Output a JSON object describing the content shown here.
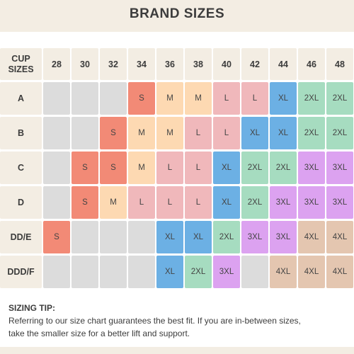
{
  "title": "BRAND SIZES",
  "chart_data": {
    "type": "table",
    "corner_lines": [
      "CUP",
      "SIZES"
    ],
    "bands": [
      "28",
      "30",
      "32",
      "34",
      "36",
      "38",
      "40",
      "42",
      "44",
      "46",
      "48"
    ],
    "rows": [
      {
        "cup": "A",
        "sizes": [
          "",
          "",
          "",
          "S",
          "M",
          "M",
          "L",
          "L",
          "XL",
          "2XL",
          "2XL"
        ]
      },
      {
        "cup": "B",
        "sizes": [
          "",
          "",
          "S",
          "M",
          "M",
          "L",
          "L",
          "XL",
          "XL",
          "2XL",
          "2XL"
        ]
      },
      {
        "cup": "C",
        "sizes": [
          "",
          "S",
          "S",
          "M",
          "L",
          "L",
          "XL",
          "2XL",
          "2XL",
          "3XL",
          "3XL"
        ]
      },
      {
        "cup": "D",
        "sizes": [
          "",
          "S",
          "M",
          "L",
          "L",
          "L",
          "XL",
          "2XL",
          "3XL",
          "3XL",
          "3XL"
        ]
      },
      {
        "cup": "DD/E",
        "sizes": [
          "S",
          "",
          "",
          "",
          "XL",
          "XL",
          "2XL",
          "3XL",
          "3XL",
          "4XL",
          "4XL"
        ]
      },
      {
        "cup": "DDD/F",
        "sizes": [
          "",
          "",
          "",
          "",
          "XL",
          "2XL",
          "3XL",
          "",
          "4XL",
          "4XL",
          "4XL"
        ]
      }
    ]
  },
  "colors": {
    "header_bg": "#f3ede3",
    "empty": "#dcdcdc",
    "S": "#f28a76",
    "M": "#fdd9b2",
    "L": "#f0b8bb",
    "XL": "#6cb0e4",
    "2XL": "#a6dcc0",
    "3XL": "#dca2f0",
    "4XL": "#e4c6b0"
  },
  "tip": {
    "heading": "SIZING TIP:",
    "line1": "Referring to our size chart guarantees the best fit. If you are in-between sizes,",
    "line2": "take the smaller size for a better lift and support."
  }
}
